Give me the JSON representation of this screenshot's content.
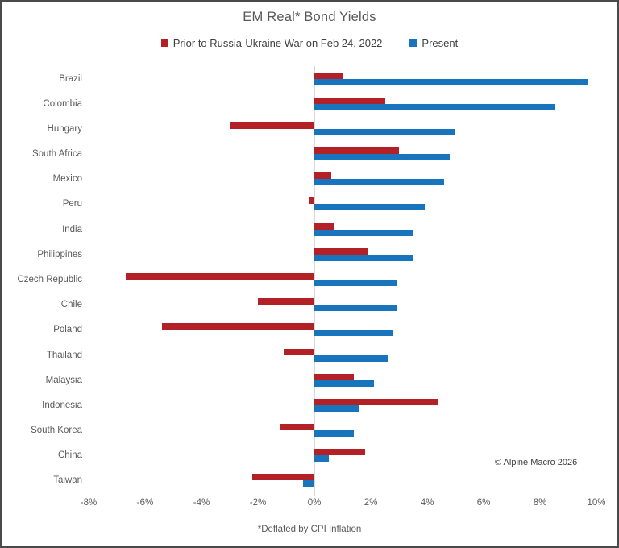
{
  "title": "EM Real* Bond Yields",
  "footnote": "*Deflated by CPI Inflation",
  "copyright": "© Alpine Macro 2026",
  "colors": {
    "prior": "#B32025",
    "present": "#1874BD",
    "zero_line": "#D9D9D9",
    "label_text": "#595959",
    "title_text": "#595959",
    "legend_text": "#404040"
  },
  "chart_data": {
    "type": "bar",
    "orientation": "horizontal",
    "title": "EM Real* Bond Yields",
    "categories": [
      "Brazil",
      "Colombia",
      "Hungary",
      "South Africa",
      "Mexico",
      "Peru",
      "India",
      "Philippines",
      "Czech Republic",
      "Chile",
      "Poland",
      "Thailand",
      "Malaysia",
      "Indonesia",
      "South Korea",
      "China",
      "Taiwan"
    ],
    "series": [
      {
        "name": "Prior to Russia-Ukraine War on Feb 24, 2022",
        "color_key": "prior",
        "values": [
          1.0,
          2.5,
          -3.0,
          3.0,
          0.6,
          -0.2,
          0.7,
          1.9,
          -6.7,
          -2.0,
          -5.4,
          -1.1,
          1.4,
          4.4,
          -1.2,
          1.8,
          -2.2
        ]
      },
      {
        "name": "Present",
        "color_key": "present",
        "values": [
          9.7,
          8.5,
          5.0,
          4.8,
          4.6,
          3.9,
          3.5,
          3.5,
          2.9,
          2.9,
          2.8,
          2.6,
          2.1,
          1.6,
          1.4,
          0.5,
          -0.4
        ]
      }
    ],
    "xlabel": "",
    "ylabel": "",
    "xlim": [
      -8,
      10
    ],
    "xticks": [
      -8,
      -6,
      -4,
      -2,
      0,
      2,
      4,
      6,
      8,
      10
    ],
    "tick_suffix": "%",
    "value_unit": "percent (real yield)",
    "grid": false,
    "legend_position": "top"
  }
}
